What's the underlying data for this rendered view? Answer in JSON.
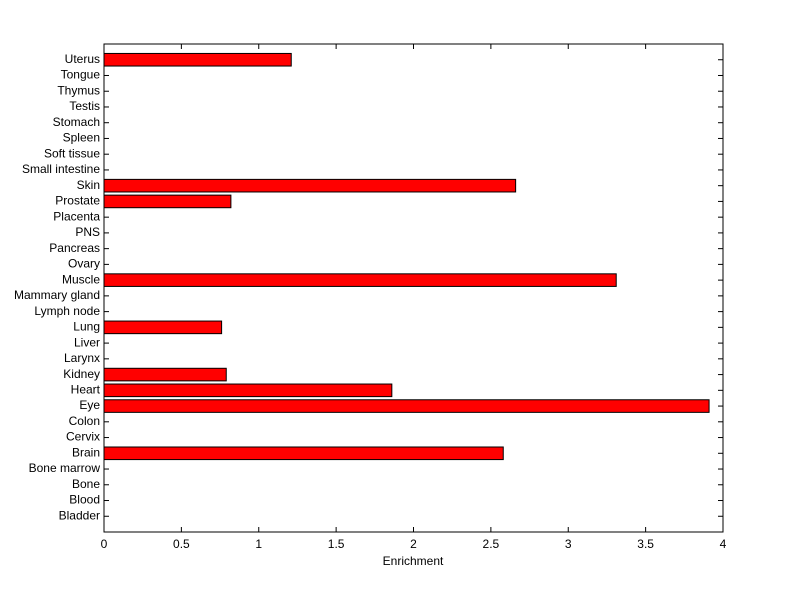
{
  "chart_data": {
    "type": "barh",
    "xlabel": "Enrichment",
    "categories": [
      "Bladder",
      "Blood",
      "Bone",
      "Bone marrow",
      "Brain",
      "Cervix",
      "Colon",
      "Eye",
      "Heart",
      "Kidney",
      "Larynx",
      "Liver",
      "Lung",
      "Lymph node",
      "Mammary gland",
      "Muscle",
      "Ovary",
      "Pancreas",
      "PNS",
      "Placenta",
      "Prostate",
      "Skin",
      "Small intestine",
      "Soft tissue",
      "Spleen",
      "Stomach",
      "Testis",
      "Thymus",
      "Tongue",
      "Uterus"
    ],
    "values": [
      0,
      0,
      0,
      0,
      2.58,
      0,
      0,
      3.91,
      1.86,
      0.79,
      0,
      0,
      0.76,
      0,
      0,
      3.31,
      0,
      0,
      0,
      0,
      0.82,
      2.66,
      0,
      0,
      0,
      0,
      0,
      0,
      0,
      1.21
    ],
    "color": "#ff0000",
    "xlim": [
      0,
      4
    ],
    "xticks": [
      0,
      0.5,
      1,
      1.5,
      2,
      2.5,
      3,
      3.5,
      4
    ]
  }
}
